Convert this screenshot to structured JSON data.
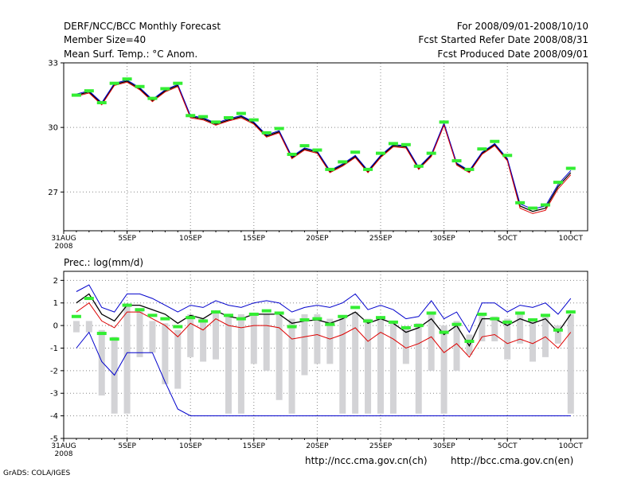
{
  "header": {
    "title": "DERF/NCC/BCC Monthly Forecast",
    "member_size": "Member Size=40",
    "variable": "Mean Surf. Temp.: °C Anom.",
    "period": "For 2008/09/01-2008/10/10",
    "start_date": "Fcst Started Refer Date 2008/08/31",
    "produced_date": "Fcst Produced Date 2008/09/01"
  },
  "footer": {
    "url_ch": "http://ncc.cma.gov.cn(ch)",
    "url_en": "http://bcc.cma.gov.cn(en)",
    "credit": "GrADS: COLA/IGES"
  },
  "colors": {
    "mean": "#000000",
    "upper": "#0000cc",
    "lower": "#dd0000",
    "marker": "#33ee33",
    "bar": "#d3d3d6",
    "grid": "#888888"
  },
  "chart_data": [
    {
      "type": "line",
      "title": "Mean Surf. Temp.: °C Anom.",
      "x_tick_labels": [
        "31AUG",
        "5SEP",
        "10SEP",
        "15SEP",
        "20SEP",
        "25SEP",
        "30SEP",
        "5OCT",
        "10OCT"
      ],
      "x_year_label": "2008",
      "ylim": [
        25.2,
        33
      ],
      "y_ticks": [
        27,
        30,
        33
      ],
      "grid": true,
      "x": [
        1,
        2,
        3,
        4,
        5,
        6,
        7,
        8,
        9,
        10,
        11,
        12,
        13,
        14,
        15,
        16,
        17,
        18,
        19,
        20,
        21,
        22,
        23,
        24,
        25,
        26,
        27,
        28,
        29,
        30,
        31,
        32,
        33,
        34,
        35,
        36,
        37,
        38,
        39,
        40
      ],
      "series": [
        {
          "name": "mean",
          "values": [
            31.5,
            31.65,
            31.1,
            32,
            32.15,
            31.8,
            31.25,
            31.7,
            31.95,
            30.5,
            30.4,
            30.15,
            30.35,
            30.5,
            30.2,
            29.6,
            29.8,
            28.6,
            29.0,
            28.85,
            27.95,
            28.25,
            28.65,
            27.95,
            28.65,
            29.15,
            29.1,
            28.1,
            28.7,
            30.15,
            28.3,
            27.95,
            28.8,
            29.2,
            28.5,
            26.35,
            26.1,
            26.25,
            27.25,
            27.9
          ]
        },
        {
          "name": "upper",
          "values": [
            31.55,
            31.7,
            31.15,
            32.05,
            32.2,
            31.85,
            31.3,
            31.75,
            32.0,
            30.55,
            30.45,
            30.2,
            30.4,
            30.55,
            30.25,
            29.65,
            29.85,
            28.65,
            29.05,
            28.9,
            28.0,
            28.3,
            28.7,
            28.0,
            28.7,
            29.2,
            29.15,
            28.15,
            28.75,
            30.2,
            28.35,
            28.0,
            28.85,
            29.25,
            28.55,
            26.45,
            26.2,
            26.35,
            27.35,
            28.0
          ]
        },
        {
          "name": "lower",
          "values": [
            31.45,
            31.6,
            31.05,
            31.95,
            32.1,
            31.75,
            31.2,
            31.65,
            31.9,
            30.45,
            30.35,
            30.1,
            30.3,
            30.45,
            30.15,
            29.55,
            29.75,
            28.55,
            28.95,
            28.8,
            27.9,
            28.2,
            28.6,
            27.9,
            28.6,
            29.1,
            29.05,
            28.05,
            28.65,
            30.1,
            28.25,
            27.9,
            28.75,
            29.15,
            28.45,
            26.25,
            26.0,
            26.15,
            27.15,
            27.8
          ]
        },
        {
          "name": "reference",
          "values": [
            31.5,
            31.7,
            31.15,
            32.05,
            32.25,
            31.9,
            31.35,
            31.8,
            32.05,
            30.55,
            30.5,
            30.25,
            30.45,
            30.65,
            30.35,
            29.75,
            29.95,
            28.75,
            29.15,
            28.95,
            28.05,
            28.4,
            28.85,
            28.05,
            28.8,
            29.25,
            29.2,
            28.2,
            28.8,
            30.25,
            28.45,
            28.05,
            29.0,
            29.35,
            28.7,
            26.5,
            26.25,
            26.4,
            27.45,
            28.1
          ]
        }
      ]
    },
    {
      "type": "line",
      "title": "Prec.: log(mm/d)",
      "x_tick_labels": [
        "31AUG",
        "5SEP",
        "10SEP",
        "15SEP",
        "20SEP",
        "25SEP",
        "30SEP",
        "5OCT",
        "10OCT"
      ],
      "x_year_label": "2008",
      "ylim": [
        -5,
        2.4
      ],
      "y_ticks": [
        -5,
        -4,
        -3,
        -2,
        -1,
        0,
        1,
        2
      ],
      "grid": true,
      "x": [
        1,
        2,
        3,
        4,
        5,
        6,
        7,
        8,
        9,
        10,
        11,
        12,
        13,
        14,
        15,
        16,
        17,
        18,
        19,
        20,
        21,
        22,
        23,
        24,
        25,
        26,
        27,
        28,
        29,
        30,
        31,
        32,
        33,
        34,
        35,
        36,
        37,
        38,
        39,
        40
      ],
      "series": [
        {
          "name": "mean",
          "values": [
            1.0,
            1.4,
            0.5,
            0.2,
            0.9,
            0.9,
            0.7,
            0.5,
            0.1,
            0.45,
            0.3,
            0.65,
            0.4,
            0.3,
            0.5,
            0.5,
            0.5,
            0.1,
            0.2,
            0.25,
            0.1,
            0.3,
            0.6,
            0.1,
            0.3,
            0.1,
            -0.3,
            -0.1,
            0.3,
            -0.4,
            0.0,
            -0.9,
            0.3,
            0.3,
            0.0,
            0.3,
            0.1,
            0.3,
            -0.3,
            0.5
          ]
        },
        {
          "name": "upper",
          "values": [
            1.5,
            1.8,
            0.8,
            0.6,
            1.4,
            1.4,
            1.2,
            0.9,
            0.6,
            0.9,
            0.8,
            1.1,
            0.9,
            0.8,
            1.0,
            1.1,
            1.0,
            0.6,
            0.8,
            0.9,
            0.8,
            1.0,
            1.4,
            0.7,
            0.9,
            0.7,
            0.3,
            0.4,
            1.1,
            0.3,
            0.6,
            -0.3,
            1.0,
            1.0,
            0.6,
            0.9,
            0.8,
            1.0,
            0.5,
            1.2
          ]
        },
        {
          "name": "lower",
          "values": [
            0.6,
            1.0,
            0.2,
            -0.1,
            0.6,
            0.6,
            0.3,
            0.0,
            -0.5,
            0.1,
            -0.2,
            0.3,
            0.0,
            -0.1,
            0.0,
            0.0,
            -0.1,
            -0.6,
            -0.5,
            -0.4,
            -0.6,
            -0.4,
            -0.1,
            -0.7,
            -0.3,
            -0.6,
            -1.0,
            -0.8,
            -0.5,
            -1.2,
            -0.8,
            -1.4,
            -0.5,
            -0.4,
            -0.8,
            -0.6,
            -0.8,
            -0.5,
            -1.0,
            -0.3
          ]
        },
        {
          "name": "min",
          "values": [
            -1.0,
            -0.3,
            -1.6,
            -2.2,
            -1.2,
            -1.2,
            -1.2,
            -2.5,
            -3.7,
            -4.0,
            -4.0,
            -4.0,
            -4.0,
            -4.0,
            -4.0,
            -4.0,
            -4.0,
            -4.0,
            -4.0,
            -4.0,
            -4.0,
            -4.0,
            -4.0,
            -4.0,
            -4.0,
            -4.0,
            -4.0,
            -4.0,
            -4.0,
            -4.0,
            -4.0,
            -4.0,
            -4.0,
            -4.0,
            -4.0,
            -4.0,
            -4.0,
            -4.0,
            -4.0,
            -4.0
          ]
        },
        {
          "name": "reference",
          "values": [
            0.4,
            1.2,
            -0.35,
            -0.6,
            0.9,
            0.7,
            0.45,
            0.3,
            -0.05,
            0.35,
            0.2,
            0.6,
            0.45,
            0.3,
            0.5,
            0.65,
            0.55,
            -0.05,
            0.25,
            0.3,
            0.05,
            0.4,
            0.8,
            0.2,
            0.35,
            0.15,
            -0.1,
            0.0,
            0.55,
            -0.3,
            0.05,
            -0.7,
            0.5,
            0.3,
            0.15,
            0.55,
            0.25,
            0.45,
            -0.2,
            0.6
          ]
        }
      ],
      "bars": {
        "top": [
          0.2,
          0.2,
          -0.2,
          -0.5,
          0.9,
          0.7,
          0.2,
          0.1,
          -0.2,
          0.5,
          0.3,
          0.6,
          0.5,
          0.5,
          0.5,
          0.5,
          0.5,
          0.3,
          0.5,
          0.5,
          0.3,
          0.4,
          0.6,
          0.3,
          0.4,
          0.1,
          -0.1,
          0.1,
          0.6,
          0.0,
          0.2,
          -0.4,
          0.5,
          0.4,
          0.3,
          0.5,
          0.3,
          0.5,
          0.0,
          0.5
        ],
        "bottom": [
          -0.3,
          -0.3,
          -3.1,
          -3.9,
          -3.9,
          -1.4,
          -1.2,
          -2.6,
          -2.8,
          -1.4,
          -1.6,
          -1.5,
          -3.9,
          -3.9,
          -1.7,
          -2.0,
          -3.3,
          -3.9,
          -2.2,
          -1.7,
          -1.7,
          -3.9,
          -3.9,
          -3.9,
          -3.9,
          -3.9,
          -1.7,
          -3.9,
          -2.0,
          -3.9,
          -2.0,
          -1.3,
          -0.7,
          -0.7,
          -1.5,
          -0.8,
          -1.6,
          -1.4,
          -0.8,
          -3.9
        ]
      }
    }
  ]
}
